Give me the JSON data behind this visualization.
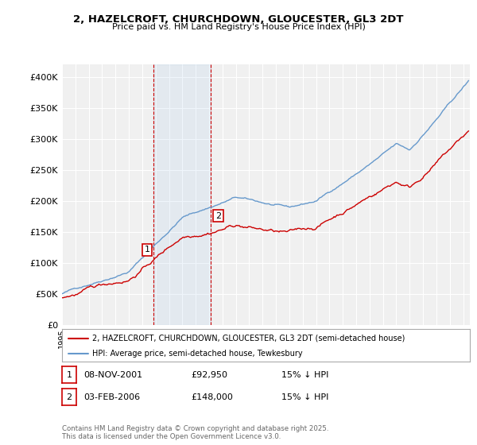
{
  "title_line1": "2, HAZELCROFT, CHURCHDOWN, GLOUCESTER, GL3 2DT",
  "title_line2": "Price paid vs. HM Land Registry's House Price Index (HPI)",
  "ylabel_ticks": [
    "£0",
    "£50K",
    "£100K",
    "£150K",
    "£200K",
    "£250K",
    "£300K",
    "£350K",
    "£400K"
  ],
  "ytick_values": [
    0,
    50000,
    100000,
    150000,
    200000,
    250000,
    300000,
    350000,
    400000
  ],
  "ylim": [
    0,
    420000
  ],
  "xlim_start": 1995.0,
  "xlim_end": 2025.5,
  "purchase1_date": 2001.86,
  "purchase1_price": 92950,
  "purchase1_label": "1",
  "purchase2_date": 2006.09,
  "purchase2_price": 148000,
  "purchase2_label": "2",
  "legend_line1": "2, HAZELCROFT, CHURCHDOWN, GLOUCESTER, GL3 2DT (semi-detached house)",
  "legend_line2": "HPI: Average price, semi-detached house, Tewkesbury",
  "table_row1": [
    "1",
    "08-NOV-2001",
    "£92,950",
    "15% ↓ HPI"
  ],
  "table_row2": [
    "2",
    "03-FEB-2006",
    "£148,000",
    "15% ↓ HPI"
  ],
  "footnote1": "Contains HM Land Registry data © Crown copyright and database right 2025.",
  "footnote2": "This data is licensed under the Open Government Licence v3.0.",
  "color_red": "#cc0000",
  "color_blue": "#6699cc",
  "color_vline": "#cc0000",
  "color_shade": "#aaccee",
  "background_chart": "#f0f0f0",
  "background_fig": "#ffffff"
}
